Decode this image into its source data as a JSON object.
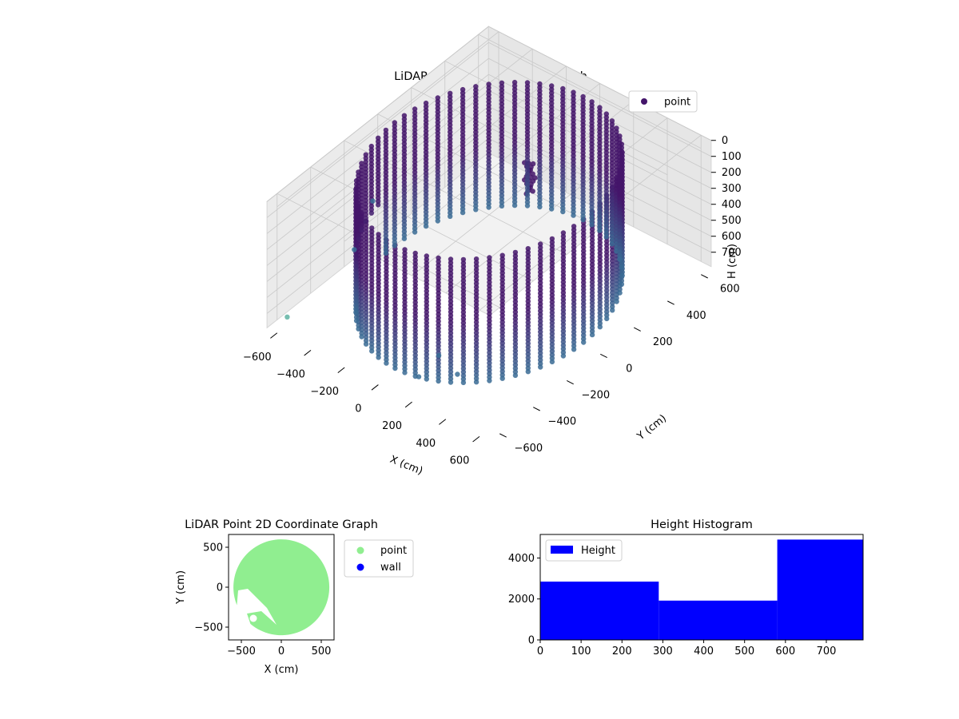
{
  "colors": {
    "point_3d_top": "#44156a",
    "point_3d_bottom": "#3a6f96",
    "point_3d_far": "#5fb3a2",
    "point_2d": "#90ee90",
    "wall_2d": "#0000ff",
    "histogram": "#0000ff"
  },
  "chart_data": [
    {
      "type": "scatter3d",
      "title": "LiDAR Point 3D Coordinate Graph",
      "xlabel": "X (cm)",
      "ylabel": "Y (cm)",
      "zlabel": "H (cm)",
      "xticks": [
        "−600",
        "−400",
        "−200",
        "0",
        "200",
        "400",
        "600"
      ],
      "yticks": [
        "−600",
        "−400",
        "−200",
        "0",
        "200",
        "400",
        "600"
      ],
      "zticks": [
        "0",
        "100",
        "200",
        "300",
        "400",
        "500",
        "600",
        "700"
      ],
      "xlim": [
        -660,
        660
      ],
      "ylim": [
        -660,
        660
      ],
      "zlim": [
        0,
        790
      ],
      "z_inverted": true,
      "grid": true,
      "legend": {
        "position": "top-right",
        "entries": [
          "point"
        ]
      },
      "series": [
        {
          "name": "point",
          "ring_radius": 560,
          "ring_height_range": [
            0,
            790
          ],
          "outliers": [
            {
              "x": -660,
              "y": -30,
              "h": 520
            },
            {
              "x": -680,
              "y": -120,
              "h": 760
            },
            {
              "x": -600,
              "y": -600,
              "h": 740
            },
            {
              "x": 150,
              "y": -450,
              "h": 700
            },
            {
              "x": 160,
              "y": -580,
              "h": 720
            },
            {
              "x": 310,
              "y": -500,
              "h": 690
            }
          ]
        }
      ]
    },
    {
      "type": "scatter",
      "title": "LiDAR Point 2D Coordinate Graph",
      "xlabel": "X (cm)",
      "ylabel": "Y (cm)",
      "xticks": [
        "−500",
        "0",
        "500"
      ],
      "yticks": [
        "−500",
        "0",
        "500"
      ],
      "xlim": [
        -660,
        660
      ],
      "ylim": [
        -660,
        660
      ],
      "legend": {
        "position": "right",
        "entries": [
          "point",
          "wall"
        ]
      },
      "series": [
        {
          "name": "point",
          "shape": "disc of radius ≈600 cm with an empty wedge in the lower-left"
        },
        {
          "name": "wall",
          "points": []
        }
      ]
    },
    {
      "type": "bar",
      "title": "Height Histogram",
      "xticks": [
        "0",
        "100",
        "200",
        "300",
        "400",
        "500",
        "600",
        "700"
      ],
      "yticks": [
        "0",
        "2000",
        "4000"
      ],
      "xlim": [
        0,
        790
      ],
      "ylim": [
        0,
        5150
      ],
      "legend": {
        "position": "top-left",
        "entries": [
          "Height"
        ]
      },
      "series": [
        {
          "name": "Height",
          "bins": [
            {
              "from": 0,
              "to": 290,
              "value": 2850
            },
            {
              "from": 290,
              "to": 580,
              "value": 1920
            },
            {
              "from": 580,
              "to": 790,
              "value": 4900
            }
          ]
        }
      ]
    }
  ]
}
